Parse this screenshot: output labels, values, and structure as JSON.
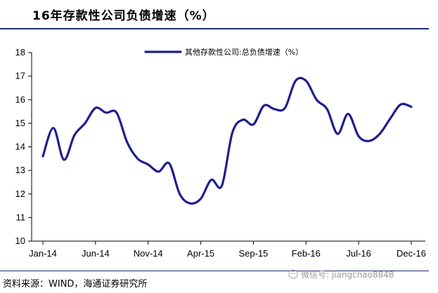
{
  "title": "16年存款性公司负债增速（%）",
  "source": "资料来源：WIND，海通证券研究所",
  "watermark": "微信号: jiangchao8848",
  "colors": {
    "series": "#1f1f8c",
    "rule": "#1f2a7a"
  },
  "chart_data": {
    "type": "line",
    "title": "16年存款性公司负债增速（%）",
    "xlabel": "",
    "ylabel": "",
    "ylim": [
      10,
      18
    ],
    "yticks": [
      10,
      11,
      12,
      13,
      14,
      15,
      16,
      17,
      18
    ],
    "xtick_labels": [
      "Jan-14",
      "Jun-14",
      "Nov-14",
      "Apr-15",
      "Sep-15",
      "Feb-16",
      "Jul-16",
      "Dec-16"
    ],
    "x": [
      "Jan-14",
      "Feb-14",
      "Mar-14",
      "Apr-14",
      "May-14",
      "Jun-14",
      "Jul-14",
      "Aug-14",
      "Sep-14",
      "Oct-14",
      "Nov-14",
      "Dec-14",
      "Jan-15",
      "Feb-15",
      "Mar-15",
      "Apr-15",
      "May-15",
      "Jun-15",
      "Jul-15",
      "Aug-15",
      "Sep-15",
      "Oct-15",
      "Nov-15",
      "Dec-15",
      "Jan-16",
      "Feb-16",
      "Mar-16",
      "Apr-16",
      "May-16",
      "Jun-16",
      "Jul-16",
      "Aug-16",
      "Sep-16",
      "Oct-16",
      "Nov-16",
      "Dec-16"
    ],
    "legend": {
      "position": "top-center"
    },
    "grid": false,
    "series": [
      {
        "name": "其他存款性公司:总负债增速（%）",
        "values": [
          13.6,
          14.8,
          13.45,
          14.5,
          15.0,
          15.65,
          15.45,
          15.45,
          14.2,
          13.5,
          13.25,
          12.95,
          13.3,
          12.0,
          11.6,
          11.8,
          12.6,
          12.35,
          14.6,
          15.15,
          14.95,
          15.75,
          15.6,
          15.65,
          16.8,
          16.8,
          16.0,
          15.6,
          14.55,
          15.4,
          14.45,
          14.25,
          14.55,
          15.2,
          15.8,
          15.7
        ]
      }
    ]
  }
}
